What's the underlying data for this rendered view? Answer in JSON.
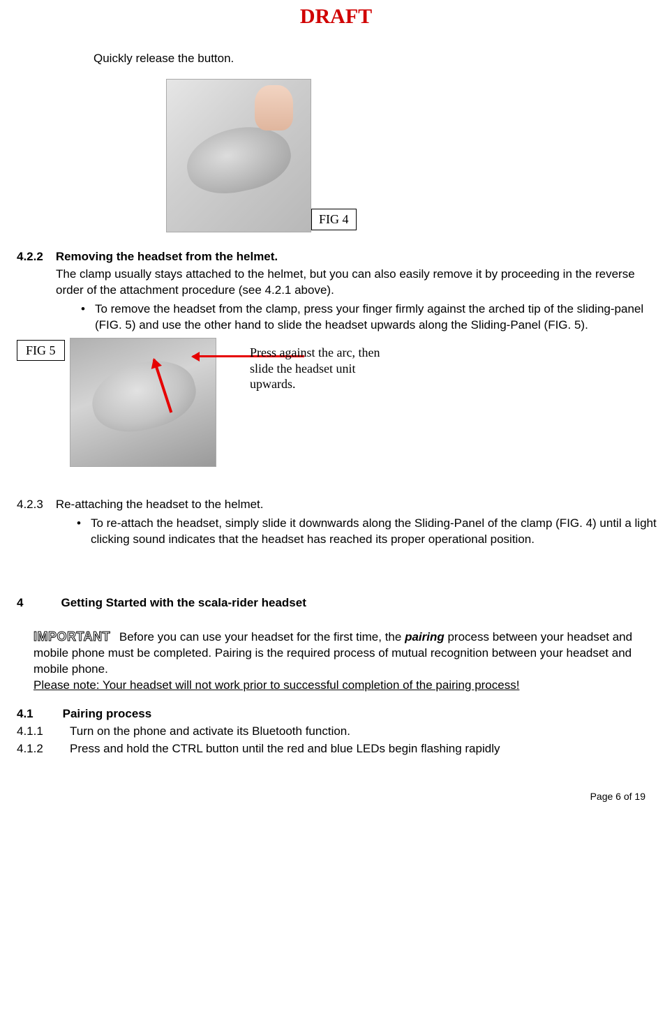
{
  "header": {
    "draft": "DRAFT"
  },
  "intro": "Quickly release the button.",
  "fig4_label": "FIG 4",
  "s422": {
    "num": "4.2.2",
    "title": "Removing the headset from the helmet.",
    "p1": "The clamp usually stays attached to the helmet, but you can also easily remove it by proceeding in the reverse order of the attachment procedure (see 4.2.1 above).",
    "bullet": "To remove the headset from the clamp, press your finger firmly against the arched tip of the sliding-panel (FIG. 5) and use the other hand to slide the headset upwards along the Sliding-Panel (FIG. 5)."
  },
  "fig5": {
    "label": "FIG 5",
    "callout": "Press against the arc, then slide the headset unit upwards."
  },
  "s423": {
    "num": "4.2.3",
    "title": "Re-attaching the headset to the helmet.",
    "bullet": "To re-attach the headset, simply slide it downwards along the Sliding-Panel of the clamp (FIG. 4) until a light clicking sound indicates that the headset has reached its proper operational position."
  },
  "s4": {
    "num": "4",
    "title": "Getting Started with the scala-rider headset"
  },
  "important": {
    "label": "IMPORTANT",
    "text_before": " Before you can use your headset for the first time, the ",
    "pairing": "pairing",
    "text_after": " process between your headset and mobile phone must be completed. Pairing is the required process of mutual recognition between your headset and mobile phone.",
    "note": "Please note: Your headset will not work prior to successful completion of the pairing process!"
  },
  "s41": {
    "num": "4.1",
    "title": "Pairing process"
  },
  "s411": {
    "num": "4.1.1",
    "text": "Turn on the phone and activate its Bluetooth function."
  },
  "s412": {
    "num": "4.1.2",
    "text": "Press and hold the CTRL button until the red and blue LEDs begin flashing rapidly"
  },
  "footer": "Page 6 of 19",
  "colors": {
    "draft_red": "#d00000",
    "arrow_red": "#e60000",
    "text": "#000000",
    "bg": "#ffffff"
  }
}
